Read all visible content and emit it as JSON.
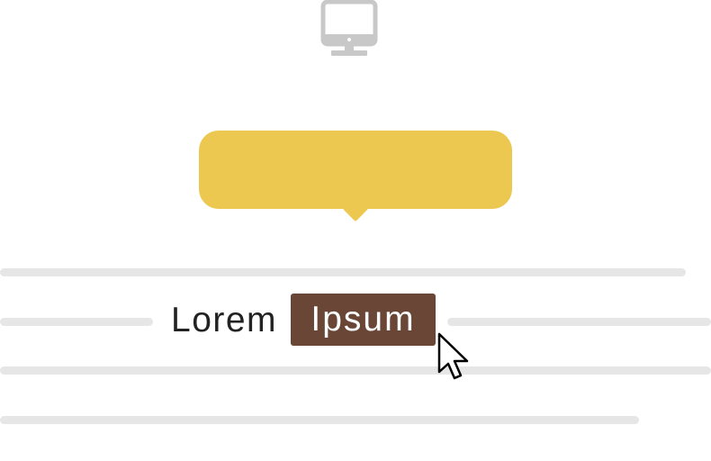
{
  "icons": {
    "monitor": "monitor-icon",
    "cursor": "mouse-pointer-icon"
  },
  "colors": {
    "tooltip": "#ecc850",
    "selection": "#6a4637",
    "text_lines": "#e6e6e6",
    "icon": "#c8c8c8"
  },
  "text": {
    "word_plain": "Lorem",
    "word_selected": "Ipsum"
  }
}
